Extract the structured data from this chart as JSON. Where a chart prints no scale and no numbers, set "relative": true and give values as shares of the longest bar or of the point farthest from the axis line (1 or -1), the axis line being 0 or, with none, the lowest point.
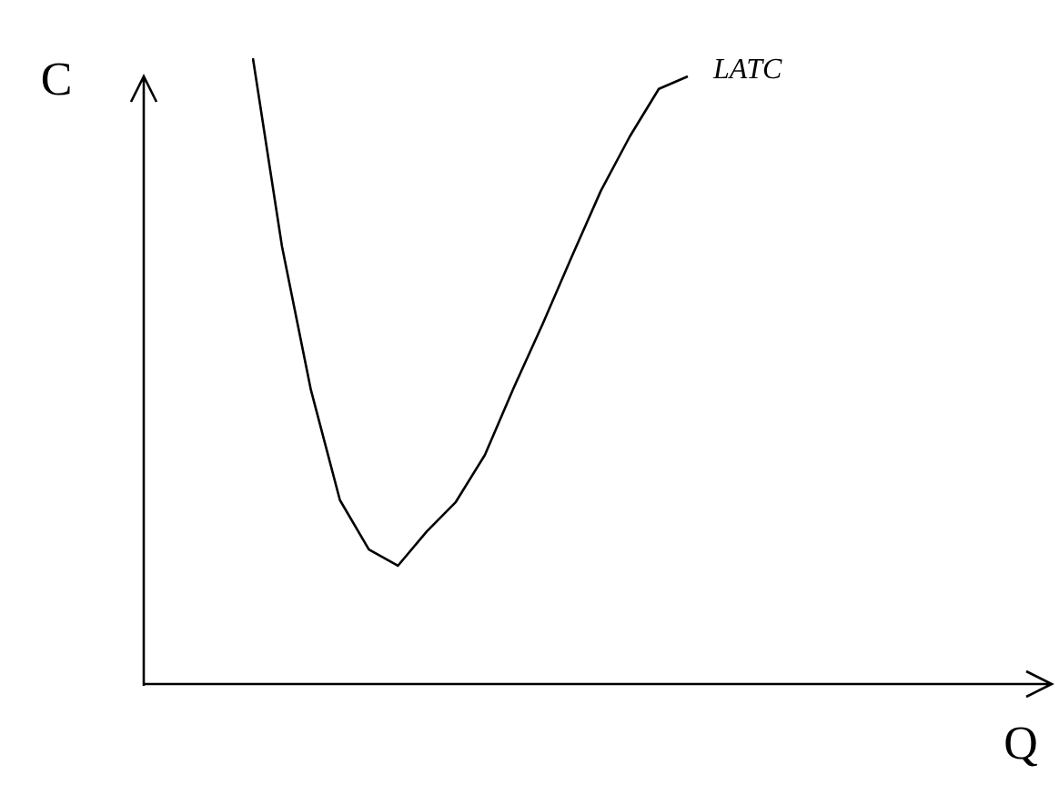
{
  "chart_data": {
    "type": "line",
    "relative": true,
    "annotations": [
      "Q"
    ],
    "ylabel": "C",
    "legend": false,
    "marker": "none",
    "line_style": "solid",
    "categories": [
      null,
      null,
      null,
      null,
      null,
      null,
      null,
      null,
      null,
      null,
      null,
      null,
      null,
      null,
      null,
      null
    ],
    "series": [
      {
        "name": "LATC",
        "color": "#000000",
        "values": [
          1.0,
          0.7,
          0.47,
          0.294,
          0.215,
          0.189,
          0.244,
          0.291,
          0.366,
          0.474,
          0.576,
          0.683,
          0.788,
          0.875,
          0.951,
          0.971
        ]
      }
    ]
  }
}
